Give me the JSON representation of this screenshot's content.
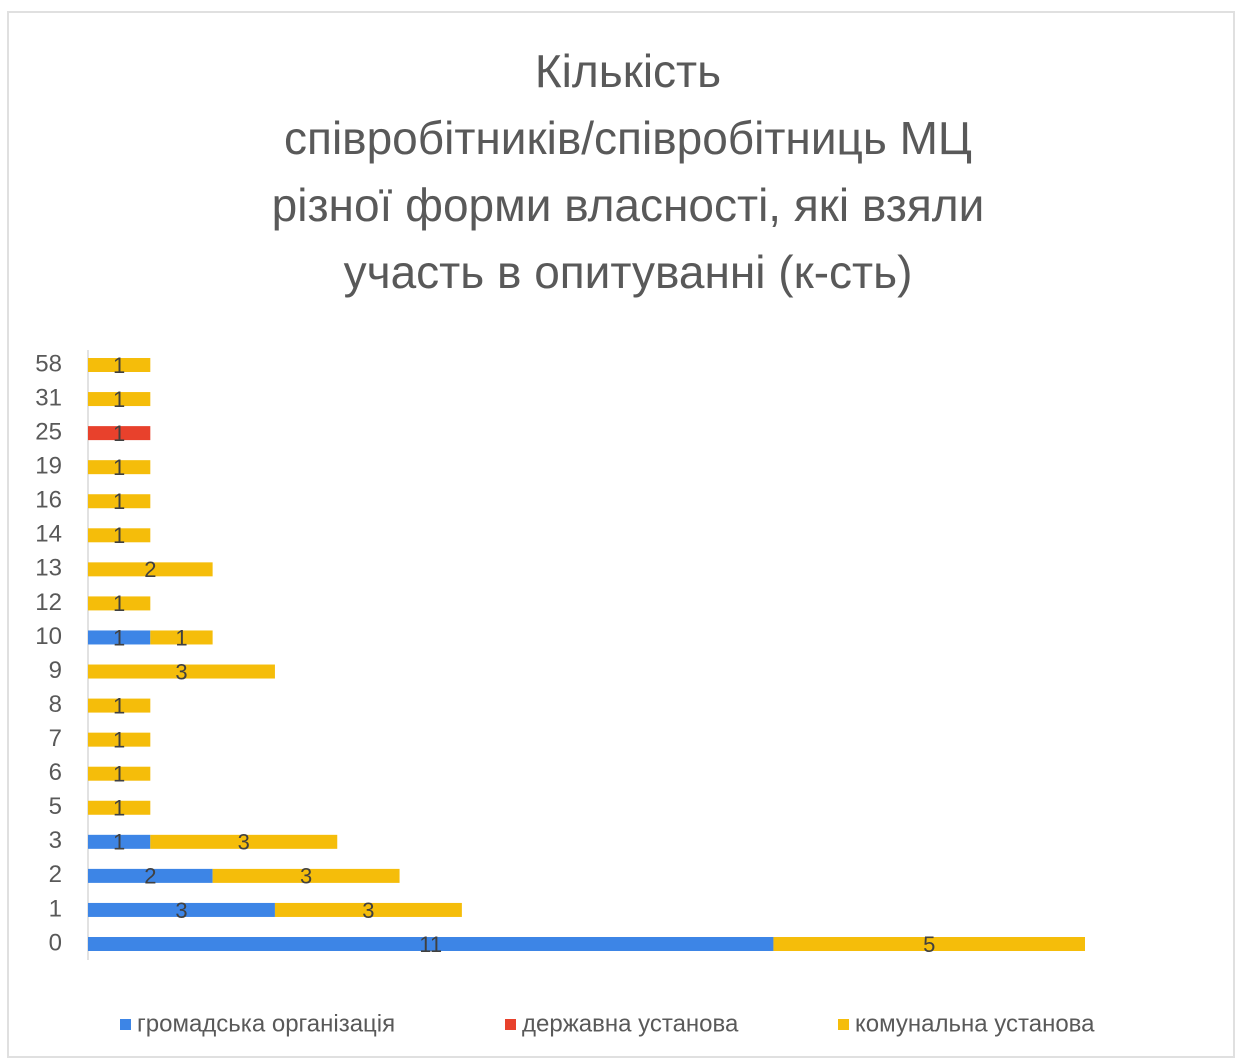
{
  "chart_data": {
    "type": "bar",
    "orientation": "horizontal",
    "stacked": true,
    "title": [
      "Кількість",
      "співробітників/співробітниць МЦ",
      "різної форми власності, які взяли",
      "участь в опитуванні (к-сть)"
    ],
    "categories": [
      "0",
      "1",
      "2",
      "3",
      "5",
      "6",
      "7",
      "8",
      "9",
      "10",
      "12",
      "13",
      "14",
      "16",
      "19",
      "25",
      "31",
      "58"
    ],
    "series": [
      {
        "name": "громадська організація",
        "color": "#3d85e6",
        "values": [
          11,
          3,
          2,
          1,
          null,
          null,
          null,
          null,
          null,
          1,
          null,
          null,
          null,
          null,
          null,
          null,
          null,
          null
        ]
      },
      {
        "name": "державна установа",
        "color": "#e8412c",
        "values": [
          null,
          null,
          null,
          null,
          null,
          null,
          null,
          null,
          null,
          null,
          null,
          null,
          null,
          null,
          null,
          1,
          null,
          null
        ]
      },
      {
        "name": "комунальна установа",
        "color": "#f5bd0a",
        "values": [
          5,
          3,
          3,
          3,
          1,
          1,
          1,
          1,
          3,
          1,
          1,
          2,
          1,
          1,
          1,
          null,
          1,
          1
        ]
      }
    ],
    "legend": "bottom"
  }
}
